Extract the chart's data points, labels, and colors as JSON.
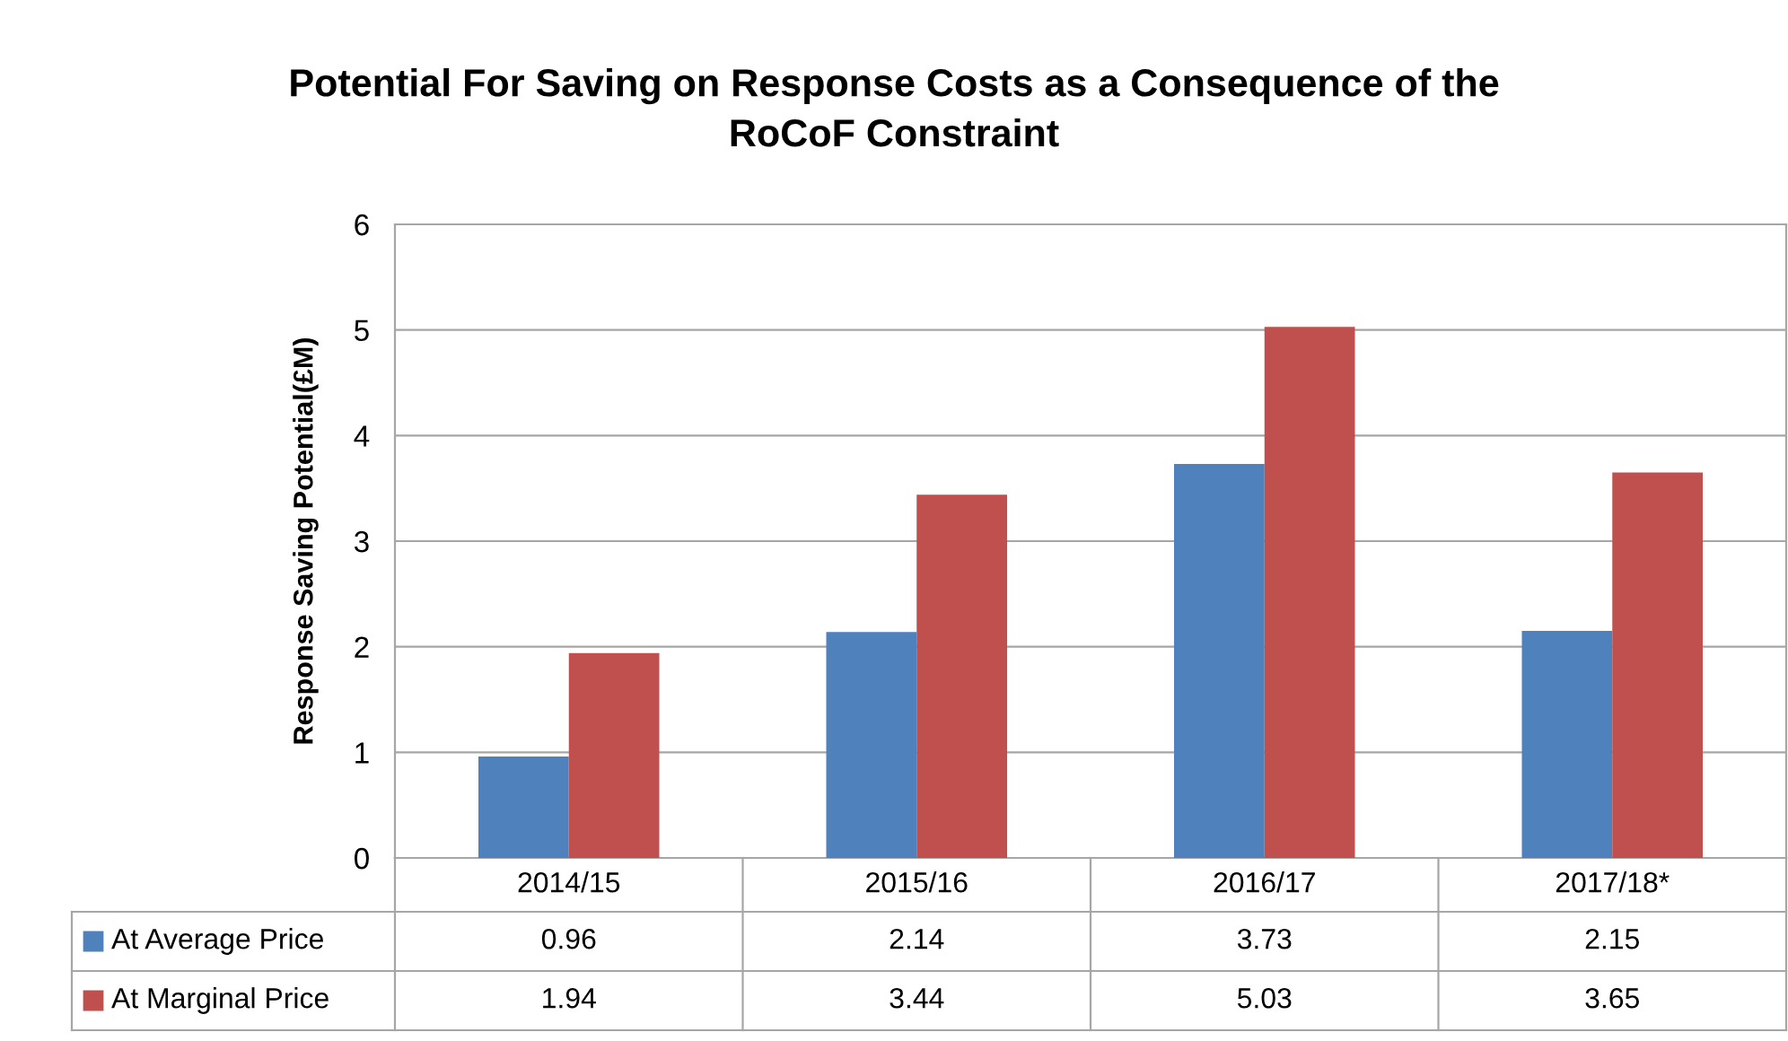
{
  "chart_data": {
    "type": "bar",
    "title": "Potential For Saving on Response Costs as a Consequence of the\nRoCoF Constraint",
    "ylabel": "Response Saving Potential(£M)",
    "categories": [
      "2014/15",
      "2015/16",
      "2016/17",
      "2017/18*"
    ],
    "series": [
      {
        "name": "At Average Price",
        "color": "#4f81bd",
        "values": [
          0.96,
          2.14,
          3.73,
          2.15
        ]
      },
      {
        "name": "At Marginal Price",
        "color": "#c0504d",
        "values": [
          1.94,
          3.44,
          5.03,
          3.65
        ]
      }
    ],
    "ylim": [
      0,
      6
    ],
    "yticks": [
      0,
      1,
      2,
      3,
      4,
      5,
      6
    ],
    "grid": "y",
    "data_labels": true,
    "legend": "bottom"
  }
}
